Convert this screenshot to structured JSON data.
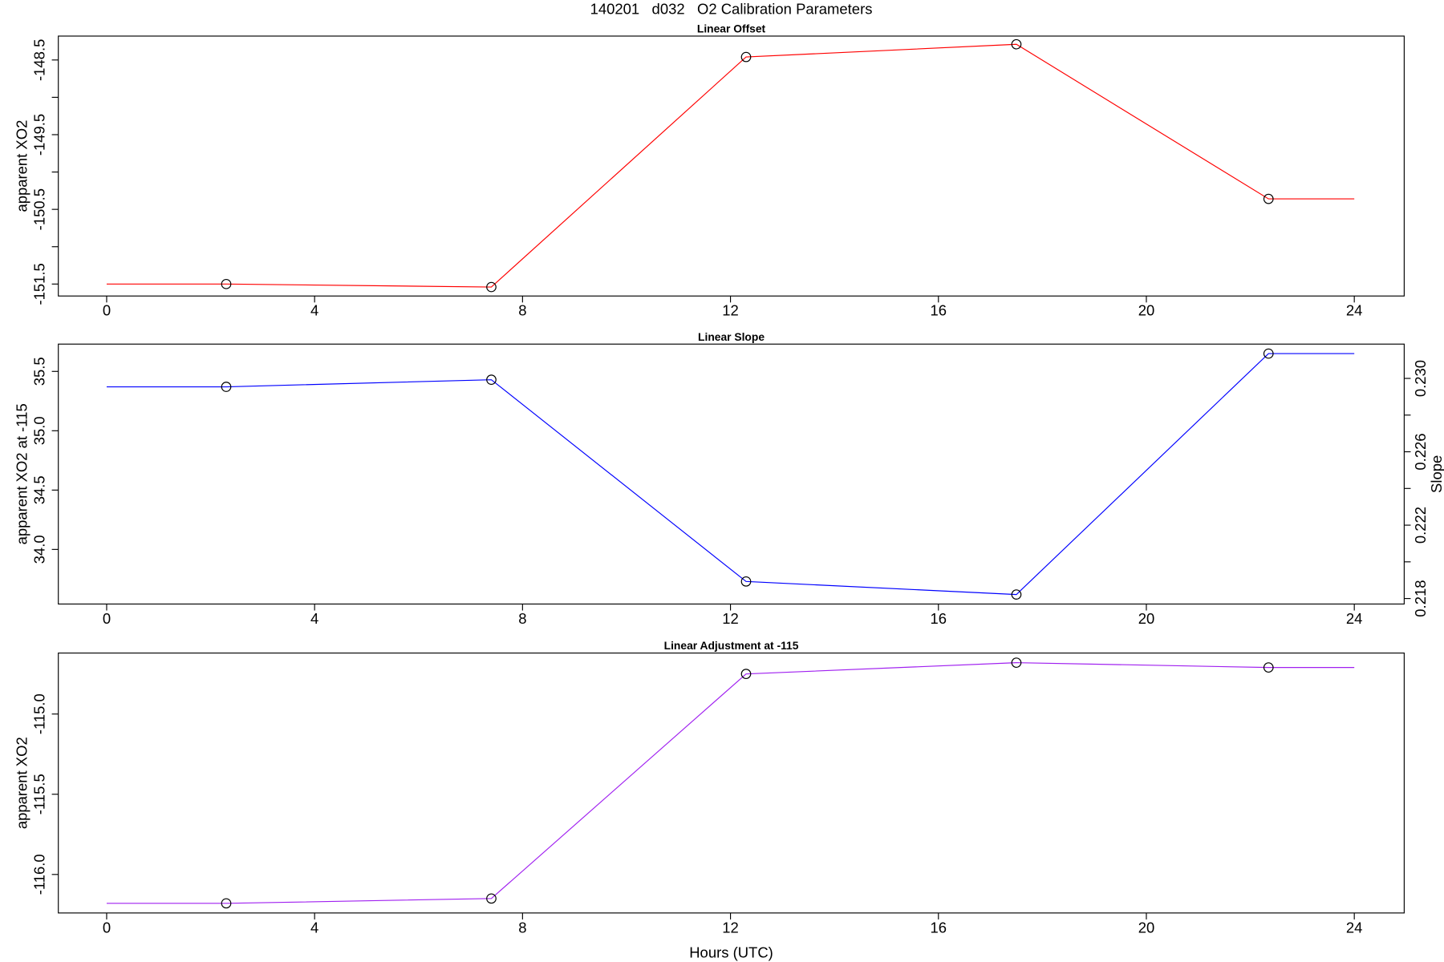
{
  "title": "140201   d032   O2 Calibration Parameters",
  "chart_data": [
    {
      "type": "line",
      "title": "Linear Offset",
      "y_label": "apparent XO2",
      "x": [
        0,
        2.3,
        7.4,
        12.3,
        17.5,
        22.35,
        24
      ],
      "markers": [
        false,
        true,
        true,
        true,
        true,
        true,
        false
      ],
      "series": [
        {
          "color": "#ff0000",
          "values": [
            -151.5,
            -151.5,
            -151.54,
            -148.46,
            -148.29,
            -150.36,
            -150.36
          ]
        }
      ],
      "xlim": [
        -0.93,
        24.96
      ],
      "xticks": [
        0,
        4,
        8,
        12,
        16,
        20,
        24
      ],
      "ylim": [
        -151.66,
        -148.18
      ],
      "yticks": [
        -151.5,
        -150.5,
        -149.5,
        -148.5
      ],
      "minor_yticks": [
        -151,
        -150,
        -149
      ]
    },
    {
      "type": "line",
      "title": "Linear Slope",
      "y_label": "apparent XO2 at -115",
      "y2_label": "Slope",
      "x": [
        0,
        2.3,
        7.4,
        12.3,
        17.5,
        22.35,
        24
      ],
      "markers": [
        false,
        true,
        true,
        true,
        true,
        true,
        false
      ],
      "series": [
        {
          "color": "#0000ff",
          "values": [
            35.37,
            35.37,
            35.43,
            33.73,
            33.62,
            35.65,
            35.65
          ]
        }
      ],
      "xlim": [
        -0.93,
        24.96
      ],
      "xticks": [
        0,
        4,
        8,
        12,
        16,
        20,
        24
      ],
      "ylim": [
        33.54,
        35.73
      ],
      "yticks": [
        {
          "value": 34,
          "label": "34.0"
        },
        34.5,
        {
          "value": 35,
          "label": "35.0"
        },
        35.5
      ],
      "y2lim": [
        0.2177,
        0.23187
      ],
      "y2ticks": [
        0.218,
        0.222,
        0.226,
        {
          "value": 0.23,
          "label": "0.230"
        }
      ],
      "minor_y2ticks": [
        0.22,
        0.224,
        0.228
      ]
    },
    {
      "type": "line",
      "title": "Linear Adjustment at -115",
      "y_label": "apparent XO2",
      "x_label": "Hours (UTC)",
      "x": [
        0,
        2.3,
        7.4,
        12.3,
        17.5,
        22.35,
        24
      ],
      "markers": [
        false,
        true,
        true,
        true,
        true,
        true,
        false
      ],
      "series": [
        {
          "color": "#a020f0",
          "values": [
            -116.18,
            -116.18,
            -116.15,
            -114.75,
            -114.68,
            -114.71,
            -114.71
          ]
        }
      ],
      "xlim": [
        -0.93,
        24.96
      ],
      "xticks": [
        0,
        4,
        8,
        12,
        16,
        20,
        24
      ],
      "ylim": [
        -116.24,
        -114.62
      ],
      "yticks": [
        {
          "value": -116,
          "label": "-116.0"
        },
        -115.5,
        {
          "value": -115,
          "label": "-115.0"
        }
      ]
    }
  ]
}
